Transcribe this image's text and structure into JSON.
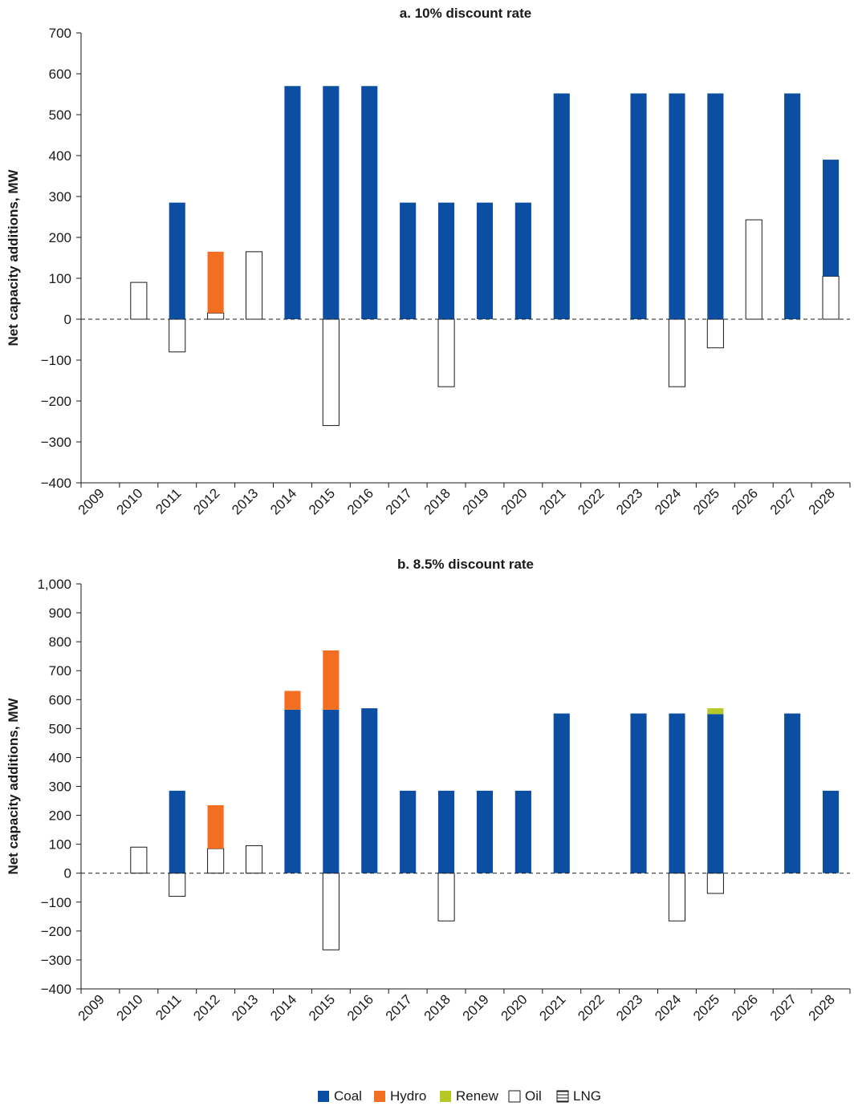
{
  "colors": {
    "Coal": "#0b4ea2",
    "Hydro": "#f26f21",
    "Renew": "#b5c827",
    "Oil": "#ffffff",
    "LNG": "#ffffff",
    "axis": "#1a1a1a"
  },
  "legend": {
    "items": [
      {
        "name": "Coal",
        "icon": "solid-square"
      },
      {
        "name": "Hydro",
        "icon": "solid-square"
      },
      {
        "name": "Renew",
        "icon": "solid-square"
      },
      {
        "name": "Oil",
        "icon": "outline-square"
      },
      {
        "name": "LNG",
        "icon": "striped-square"
      }
    ]
  },
  "chart_data": [
    {
      "type": "bar",
      "stacked": true,
      "title": "a. 10% discount rate",
      "ylabel": "Net capacity additions, MW",
      "xlabel": "",
      "categories": [
        "2009",
        "2010",
        "2011",
        "2012",
        "2013",
        "2014",
        "2015",
        "2016",
        "2017",
        "2018",
        "2019",
        "2020",
        "2021",
        "2022",
        "2023",
        "2024",
        "2025",
        "2026",
        "2027",
        "2028"
      ],
      "ylim": [
        -400,
        700
      ],
      "yticks": [
        -400,
        -300,
        -200,
        -100,
        0,
        100,
        200,
        300,
        400,
        500,
        600,
        700
      ],
      "ytick_labels": [
        "−400",
        "−300",
        "−200",
        "−100",
        "0",
        "100",
        "200",
        "300",
        "400",
        "500",
        "600",
        "700"
      ],
      "zero_line": "dashed",
      "series": [
        {
          "name": "Oil",
          "values": [
            0,
            90,
            -80,
            15,
            165,
            0,
            -260,
            0,
            0,
            -165,
            0,
            0,
            0,
            0,
            0,
            -165,
            -70,
            243,
            0,
            105
          ]
        },
        {
          "name": "Coal",
          "values": [
            0,
            0,
            285,
            0,
            0,
            570,
            570,
            570,
            285,
            285,
            285,
            285,
            552,
            0,
            552,
            552,
            552,
            0,
            552,
            285
          ]
        },
        {
          "name": "Hydro",
          "values": [
            0,
            0,
            0,
            150,
            0,
            0,
            0,
            0,
            0,
            0,
            0,
            0,
            0,
            0,
            0,
            0,
            0,
            0,
            0,
            0
          ]
        },
        {
          "name": "Renew",
          "values": [
            0,
            0,
            0,
            0,
            0,
            0,
            0,
            0,
            0,
            0,
            0,
            0,
            0,
            0,
            0,
            0,
            0,
            0,
            0,
            0
          ]
        },
        {
          "name": "LNG",
          "values": [
            0,
            0,
            0,
            0,
            0,
            0,
            0,
            0,
            0,
            0,
            0,
            0,
            0,
            0,
            0,
            0,
            0,
            0,
            0,
            0
          ]
        }
      ]
    },
    {
      "type": "bar",
      "stacked": true,
      "title": "b. 8.5% discount rate",
      "ylabel": "Net capacity additions, MW",
      "xlabel": "",
      "categories": [
        "2009",
        "2010",
        "2011",
        "2012",
        "2013",
        "2014",
        "2015",
        "2016",
        "2017",
        "2018",
        "2019",
        "2020",
        "2021",
        "2022",
        "2023",
        "2024",
        "2025",
        "2026",
        "2027",
        "2028"
      ],
      "ylim": [
        -400,
        1000
      ],
      "yticks": [
        -400,
        -300,
        -200,
        -100,
        0,
        100,
        200,
        300,
        400,
        500,
        600,
        700,
        800,
        900,
        1000
      ],
      "ytick_labels": [
        "−400",
        "−300",
        "−200",
        "−100",
        "0",
        "100",
        "200",
        "300",
        "400",
        "500",
        "600",
        "700",
        "800",
        "900",
        "1,000"
      ],
      "zero_line": "dashed",
      "series": [
        {
          "name": "Oil",
          "values": [
            0,
            90,
            -80,
            85,
            95,
            0,
            -265,
            0,
            0,
            -165,
            0,
            0,
            0,
            0,
            0,
            -165,
            -70,
            0,
            0,
            0
          ]
        },
        {
          "name": "Coal",
          "values": [
            0,
            0,
            285,
            0,
            0,
            565,
            565,
            570,
            285,
            285,
            285,
            285,
            552,
            0,
            552,
            552,
            550,
            0,
            552,
            285
          ]
        },
        {
          "name": "Hydro",
          "values": [
            0,
            0,
            0,
            150,
            0,
            65,
            205,
            0,
            0,
            0,
            0,
            0,
            0,
            0,
            0,
            0,
            0,
            0,
            0,
            0
          ]
        },
        {
          "name": "Renew",
          "values": [
            0,
            0,
            0,
            0,
            0,
            0,
            0,
            0,
            0,
            0,
            0,
            0,
            0,
            0,
            0,
            0,
            20,
            0,
            0,
            0
          ]
        },
        {
          "name": "LNG",
          "values": [
            0,
            0,
            0,
            0,
            0,
            0,
            0,
            0,
            0,
            0,
            0,
            0,
            0,
            0,
            0,
            0,
            0,
            0,
            0,
            0
          ]
        }
      ]
    }
  ]
}
